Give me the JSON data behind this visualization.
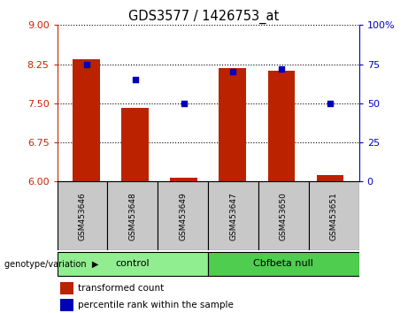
{
  "title": "GDS3577 / 1426753_at",
  "samples": [
    "GSM453646",
    "GSM453648",
    "GSM453649",
    "GSM453647",
    "GSM453650",
    "GSM453651"
  ],
  "transformed_count": [
    8.35,
    7.42,
    6.07,
    8.18,
    8.12,
    6.12
  ],
  "percentile_rank": [
    75,
    65,
    50,
    70,
    72,
    50
  ],
  "ylim_left": [
    6,
    9
  ],
  "ylim_right": [
    0,
    100
  ],
  "yticks_left": [
    6,
    6.75,
    7.5,
    8.25,
    9
  ],
  "yticks_right": [
    0,
    25,
    50,
    75,
    100
  ],
  "bar_color": "#BB2200",
  "dot_color": "#0000BB",
  "control_color": "#90EE90",
  "cbfbeta_color": "#4ECD4E",
  "sample_bg_color": "#C8C8C8",
  "left_axis_color": "#CC2200",
  "right_axis_color": "#0000CC",
  "legend_items": [
    "transformed count",
    "percentile rank within the sample"
  ],
  "group_label": "genotype/variation",
  "bar_width": 0.55
}
